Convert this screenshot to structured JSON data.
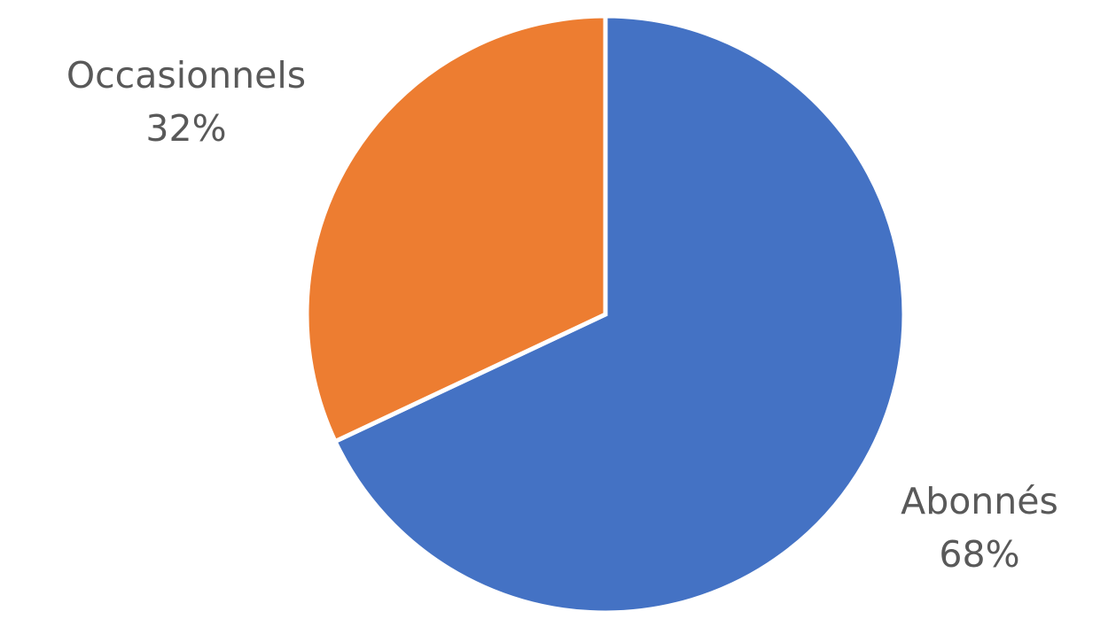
{
  "chart_data": {
    "type": "pie",
    "slices": [
      {
        "label": "Abonnés",
        "value": 68,
        "value_label": "68%",
        "color": "#4472C4"
      },
      {
        "label": "Occasionnels",
        "value": 32,
        "value_label": "32%",
        "color": "#ED7D31"
      }
    ],
    "start_angle": "12 o'clock",
    "direction": "clockwise",
    "legend": "none",
    "separator_color": "#FFFFFF"
  }
}
